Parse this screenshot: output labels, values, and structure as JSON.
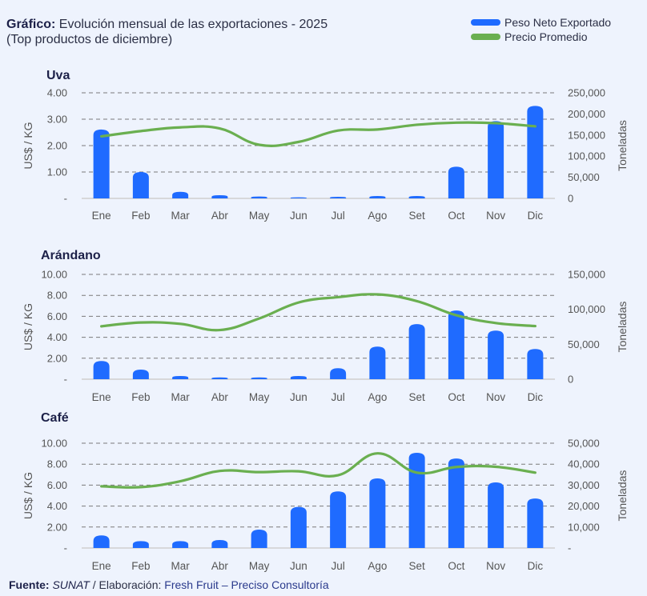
{
  "header": {
    "title_bold": "Gráfico:",
    "title_text": " Evolución mensual de las exportaciones - 2025",
    "subtitle": "(Top productos de diciembre)"
  },
  "legend": {
    "items": [
      {
        "label": "Peso Neto Exportado",
        "color": "#1f6bff"
      },
      {
        "label": "Precio Promedio",
        "color": "#6aaf50"
      }
    ]
  },
  "footer": {
    "label_bold": "Fuente:",
    "source": "SUNAT",
    "separator": " / Elaboración: ",
    "author": "Fresh Fruit – Preciso Consultoría"
  },
  "chart_data": [
    {
      "type": "bar+line",
      "title": "Uva",
      "categories": [
        "Ene",
        "Feb",
        "Mar",
        "Abr",
        "May",
        "Jun",
        "Jul",
        "Ago",
        "Set",
        "Oct",
        "Nov",
        "Dic"
      ],
      "ylabel": "US$ / KG",
      "y2label": "Toneladas",
      "ylim": [
        0,
        4
      ],
      "yticks": [
        "-",
        "1.00",
        "2.00",
        "3.00",
        "4.00"
      ],
      "y2lim": [
        0,
        250000
      ],
      "y2ticks": [
        "0",
        "50,000",
        "100,000",
        "150,000",
        "200,000",
        "250,000"
      ],
      "grid": true,
      "series": [
        {
          "name": "Peso Neto Exportado",
          "type": "bar",
          "axis": "right",
          "values": [
            163000,
            62500,
            15700,
            7600,
            4400,
            2500,
            3800,
            5700,
            5700,
            75000,
            183000,
            219000
          ]
        },
        {
          "name": "Precio Promedio",
          "type": "line",
          "axis": "left",
          "values": [
            2.35,
            2.55,
            2.69,
            2.65,
            2.03,
            2.14,
            2.57,
            2.61,
            2.79,
            2.87,
            2.85,
            2.73
          ]
        }
      ]
    },
    {
      "type": "bar+line",
      "title": "Arándano",
      "categories": [
        "Ene",
        "Feb",
        "Mar",
        "Abr",
        "May",
        "Jun",
        "Jul",
        "Ago",
        "Set",
        "Oct",
        "Nov",
        "Dic"
      ],
      "ylabel": "US$ / KG",
      "y2label": "Toneladas",
      "ylim": [
        0,
        10
      ],
      "yticks": [
        "-",
        "2.00",
        "4.00",
        "6.00",
        "8.00",
        "10.00"
      ],
      "y2lim": [
        0,
        150000
      ],
      "y2ticks": [
        "0",
        "50,000",
        "100,000",
        "150,000"
      ],
      "grid": true,
      "series": [
        {
          "name": "Peso Neto Exportado",
          "type": "bar",
          "axis": "right",
          "values": [
            26000,
            13800,
            4600,
            2600,
            2600,
            4600,
            15700,
            46700,
            78800,
            98300,
            69600,
            43200
          ]
        },
        {
          "name": "Precio Promedio",
          "type": "line",
          "axis": "left",
          "values": [
            5.05,
            5.41,
            5.28,
            4.69,
            5.79,
            7.32,
            7.83,
            8.09,
            7.45,
            6.1,
            5.36,
            5.07
          ]
        }
      ]
    },
    {
      "type": "bar+line",
      "title": "Café",
      "categories": [
        "Ene",
        "Feb",
        "Mar",
        "Abr",
        "May",
        "Jun",
        "Jul",
        "Ago",
        "Set",
        "Oct",
        "Nov",
        "Dic"
      ],
      "ylabel": "US$ / KG",
      "y2label": "Toneladas",
      "ylim": [
        0,
        10
      ],
      "yticks": [
        "-",
        "2.00",
        "4.00",
        "6.00",
        "8.00",
        "10.00"
      ],
      "y2lim": [
        0,
        50000
      ],
      "y2ticks": [
        "-",
        "10,000",
        "20,000",
        "30,000",
        "40,000",
        "50,000"
      ],
      "grid": true,
      "series": [
        {
          "name": "Peso Neto Exportado",
          "type": "bar",
          "axis": "right",
          "values": [
            6000,
            3300,
            3300,
            3800,
            8800,
            19600,
            27000,
            33200,
            45400,
            42700,
            31300,
            23600
          ]
        },
        {
          "name": "Precio Promedio",
          "type": "line",
          "axis": "left",
          "values": [
            5.89,
            5.81,
            6.37,
            7.35,
            7.24,
            7.32,
            6.94,
            9.03,
            7.19,
            7.73,
            7.75,
            7.19
          ]
        }
      ]
    }
  ]
}
